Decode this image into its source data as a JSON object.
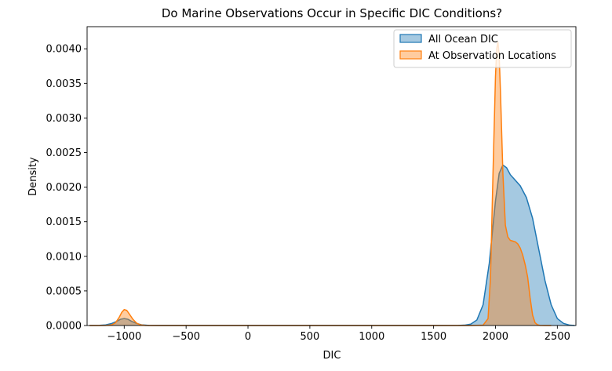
{
  "chart_data": {
    "type": "area",
    "title": "Do Marine Observations Occur in Specific DIC Conditions?",
    "xlabel": "DIC",
    "ylabel": "Density",
    "xlim": [
      -1300,
      2650
    ],
    "ylim": [
      0,
      0.00432
    ],
    "grid": false,
    "legend_position": "top-right",
    "x_ticks": [
      -1000,
      -500,
      0,
      500,
      1000,
      1500,
      2000,
      2500
    ],
    "x_tick_labels": [
      "−1000",
      "−500",
      "0",
      "500",
      "1000",
      "1500",
      "2000",
      "2500"
    ],
    "y_ticks": [
      0,
      0.0005,
      0.001,
      0.0015,
      0.002,
      0.0025,
      0.003,
      0.0035,
      0.004
    ],
    "y_tick_labels": [
      "0.0000",
      "0.0005",
      "0.0010",
      "0.0015",
      "0.0020",
      "0.0025",
      "0.0030",
      "0.0035",
      "0.0040"
    ],
    "series": [
      {
        "name": "All Ocean DIC",
        "color": "#1f77b4",
        "fill_opacity": 0.4,
        "x": [
          -1280,
          -1200,
          -1150,
          -1100,
          -1060,
          -1030,
          -1000,
          -970,
          -940,
          -900,
          -860,
          -800,
          -700,
          -500,
          0,
          500,
          1000,
          1500,
          1700,
          1750,
          1800,
          1850,
          1900,
          1950,
          2000,
          2030,
          2060,
          2090,
          2120,
          2150,
          2200,
          2250,
          2300,
          2350,
          2400,
          2450,
          2500,
          2550,
          2600,
          2640
        ],
        "y": [
          0,
          2e-06,
          8e-06,
          3e-05,
          6e-05,
          9e-05,
          0.0001,
          9e-05,
          6e-05,
          3e-05,
          1e-05,
          2e-06,
          0,
          0,
          0,
          0,
          0,
          0,
          1e-06,
          5e-06,
          2e-05,
          8e-05,
          0.0003,
          0.0009,
          0.0018,
          0.0022,
          0.00232,
          0.00228,
          0.00218,
          0.00212,
          0.00202,
          0.00185,
          0.00155,
          0.0011,
          0.00065,
          0.0003,
          0.0001,
          3e-05,
          5e-06,
          0
        ]
      },
      {
        "name": "At Observation Locations",
        "color": "#ff7f0e",
        "fill_opacity": 0.4,
        "x": [
          -1280,
          -1200,
          -1150,
          -1100,
          -1070,
          -1040,
          -1020,
          -1000,
          -980,
          -960,
          -930,
          -900,
          -870,
          -830,
          -780,
          -700,
          -500,
          0,
          500,
          1000,
          1500,
          1800,
          1900,
          1940,
          1960,
          1980,
          2000,
          2010,
          2020,
          2030,
          2040,
          2060,
          2080,
          2100,
          2120,
          2140,
          2160,
          2180,
          2200,
          2220,
          2240,
          2260,
          2280,
          2300,
          2320,
          2340,
          2360,
          2400,
          2450
        ],
        "y": [
          0,
          0,
          2e-06,
          1e-05,
          4e-05,
          0.00012,
          0.00019,
          0.00023,
          0.00022,
          0.00017,
          9e-05,
          3.5e-05,
          1e-05,
          2e-06,
          0,
          0,
          0,
          0,
          0,
          0,
          0,
          0,
          5e-06,
          0.0001,
          0.0007,
          0.0022,
          0.0036,
          0.004,
          0.0041,
          0.0039,
          0.0034,
          0.0022,
          0.00145,
          0.00128,
          0.00123,
          0.00122,
          0.00121,
          0.00118,
          0.00112,
          0.00102,
          0.00088,
          0.0007,
          0.0004,
          0.00015,
          4e-05,
          1e-05,
          2e-06,
          0,
          0
        ]
      }
    ]
  }
}
